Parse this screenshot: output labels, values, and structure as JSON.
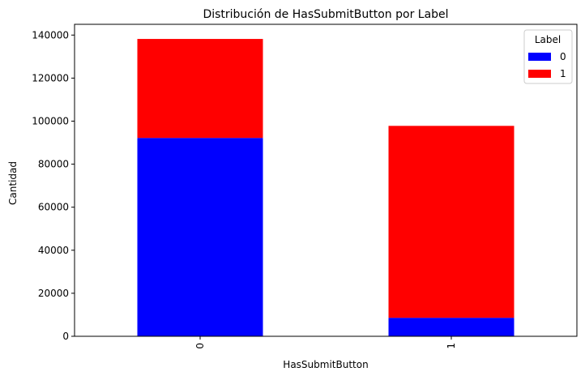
{
  "chart_data": {
    "type": "bar",
    "stacked": true,
    "title": "Distribución de HasSubmitButton por Label",
    "xlabel": "HasSubmitButton",
    "ylabel": "Cantidad",
    "categories": [
      "0",
      "1"
    ],
    "series": [
      {
        "name": "0",
        "color": "#0000ff",
        "values": [
          92200,
          8600
        ]
      },
      {
        "name": "1",
        "color": "#ff0000",
        "values": [
          46000,
          89200
        ]
      }
    ],
    "ylim": [
      0,
      145000
    ],
    "yticks": [
      0,
      20000,
      40000,
      60000,
      80000,
      100000,
      120000,
      140000
    ],
    "legend": {
      "title": "Label",
      "position": "top-right"
    },
    "grid": false
  }
}
